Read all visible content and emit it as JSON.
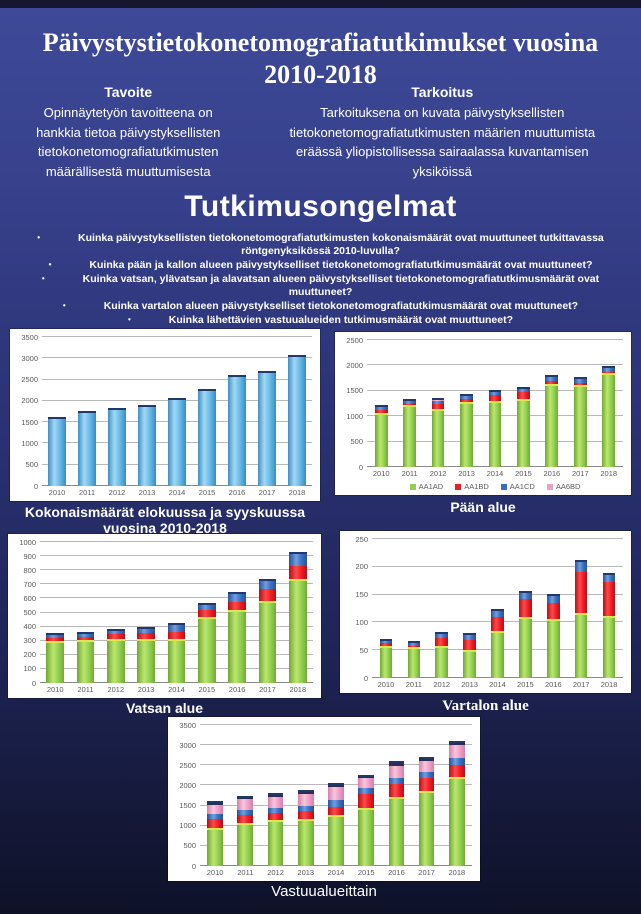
{
  "poster": {
    "title": "Päivystystietokonetomografiatutkimukset vuosina 2010-2018",
    "tavoite": {
      "heading": "Tavoite",
      "body": "Opinnäytetyön tavoitteena on hankkia tietoa päivystyksellisten tietokonetomografiatutkimusten määrällisestä muuttumisesta"
    },
    "tarkoitus": {
      "heading": "Tarkoitus",
      "body": "Tarkoituksena on kuvata päivystyksellisten tietokonetomografiatutkimusten määrien muuttumista eräässä yliopistollisessa sairaalassa kuvantamisen yksiköissä"
    },
    "tutkimusongelmat": {
      "heading": "Tutkimusongelmat",
      "items": [
        "Kuinka päivystyksellisten tietokonetomografiatutkimusten kokonaismäärät ovat muuttuneet tutkittavassa röntgenyksikössä 2010-luvulla?",
        "Kuinka pään ja kallon alueen päivystykselliset tietokonetomografiatutkimusmäärät ovat muuttuneet?",
        "Kuinka vatsan, ylävatsan ja alavatsan alueen päivystykselliset tietokonetomografiatutkimusmäärät ovat muuttuneet?",
        "Kuinka vartalon alueen päivystykselliset tietokonetomografiatutkimusmäärät ovat muuttuneet?",
        "Kuinka lähettävien vastuualueiden tutkimusmäärät ovat muuttuneet?"
      ]
    }
  },
  "colors": {
    "skyblue": "#5FB3E4",
    "green": "#92D050",
    "red": "#EE1C25",
    "blue": "#3A6FC0",
    "pink": "#EE9EC7",
    "dark": "#2B2E52",
    "background_top": "#3E4A99",
    "background_bottom": "#0E1128"
  },
  "chart_data": [
    {
      "id": "kokonaismaarat",
      "type": "bar",
      "title": "Kokonaismäärät elokuussa ja syyskuussa vuosina 2010-2018",
      "categories": [
        "2010",
        "2011",
        "2012",
        "2013",
        "2014",
        "2015",
        "2016",
        "2017",
        "2018"
      ],
      "values": [
        1580,
        1720,
        1780,
        1860,
        2010,
        2240,
        2550,
        2660,
        3040
      ],
      "bar_color": "skyblue",
      "ylim": [
        0,
        3500
      ],
      "yticks": [
        0,
        500,
        1000,
        1500,
        2000,
        2500,
        3000,
        3500
      ],
      "grid": true,
      "legend_position": "none"
    },
    {
      "id": "paan-alue",
      "type": "stacked-bar",
      "title": "Pään alue",
      "categories": [
        "2010",
        "2011",
        "2012",
        "2013",
        "2014",
        "2015",
        "2016",
        "2017",
        "2018"
      ],
      "series": [
        {
          "name": "AA1AD",
          "color": "green",
          "values": [
            1065,
            1220,
            1145,
            1285,
            1305,
            1345,
            1625,
            1605,
            1845
          ]
        },
        {
          "name": "AA1BD",
          "color": "red",
          "values": [
            55,
            30,
            100,
            55,
            110,
            125,
            60,
            50,
            30
          ]
        },
        {
          "name": "AA1CD",
          "color": "blue",
          "values": [
            60,
            50,
            60,
            60,
            65,
            70,
            80,
            70,
            75
          ]
        },
        {
          "name": "AA6BD",
          "color": "pink",
          "values": [
            5,
            5,
            5,
            5,
            5,
            5,
            5,
            5,
            5
          ]
        }
      ],
      "ylim": [
        0,
        2500
      ],
      "yticks": [
        0,
        500,
        1000,
        1500,
        2000,
        2500
      ],
      "grid": true,
      "legend_position": "bottom"
    },
    {
      "id": "vatsan-alue",
      "type": "stacked-bar",
      "title": "Vatsan alue",
      "categories": [
        "2010",
        "2011",
        "2012",
        "2013",
        "2014",
        "2015",
        "2016",
        "2017",
        "2018"
      ],
      "series": [
        {
          "name": "green",
          "color": "green",
          "values": [
            300,
            305,
            310,
            315,
            310,
            465,
            515,
            585,
            735
          ]
        },
        {
          "name": "red",
          "color": "red",
          "values": [
            22,
            22,
            35,
            42,
            50,
            52,
            58,
            82,
            92
          ]
        },
        {
          "name": "blue",
          "color": "blue",
          "values": [
            16,
            20,
            25,
            25,
            55,
            36,
            55,
            55,
            90
          ]
        }
      ],
      "ylim": [
        0,
        1000
      ],
      "yticks": [
        0,
        100,
        200,
        300,
        400,
        500,
        600,
        700,
        800,
        900,
        1000
      ],
      "grid": true,
      "legend_position": "none"
    },
    {
      "id": "vartalon-alue",
      "type": "stacked-bar",
      "title": "Vartalon alue",
      "categories": [
        "2010",
        "2011",
        "2012",
        "2013",
        "2014",
        "2015",
        "2016",
        "2017",
        "2018"
      ],
      "series": [
        {
          "name": "green",
          "color": "green",
          "values": [
            58,
            55,
            58,
            51,
            84,
            110,
            106,
            117,
            112
          ]
        },
        {
          "name": "red",
          "color": "red",
          "values": [
            5,
            3,
            14,
            18,
            26,
            33,
            29,
            74,
            60
          ]
        },
        {
          "name": "blue",
          "color": "blue",
          "values": [
            3,
            5,
            8,
            9,
            10,
            10,
            13,
            18,
            14
          ]
        }
      ],
      "ylim": [
        0,
        250
      ],
      "yticks": [
        0,
        50,
        100,
        150,
        200,
        250
      ],
      "grid": true,
      "legend_position": "none"
    },
    {
      "id": "vastuualueittain",
      "type": "stacked-bar",
      "title": "Vastuualueittain",
      "categories": [
        "2010",
        "2011",
        "2012",
        "2013",
        "2014",
        "2015",
        "2016",
        "2017",
        "2018"
      ],
      "series": [
        {
          "name": "green",
          "color": "green",
          "values": [
            950,
            1060,
            1130,
            1160,
            1260,
            1450,
            1710,
            1860,
            2210
          ]
        },
        {
          "name": "red",
          "color": "red",
          "values": [
            205,
            195,
            175,
            195,
            215,
            330,
            315,
            330,
            305
          ]
        },
        {
          "name": "blue",
          "color": "blue",
          "values": [
            125,
            135,
            145,
            140,
            155,
            150,
            160,
            140,
            160
          ]
        },
        {
          "name": "pink",
          "color": "pink",
          "values": [
            245,
            275,
            265,
            300,
            320,
            250,
            310,
            270,
            330
          ]
        },
        {
          "name": "dark",
          "color": "dark",
          "values": [
            35,
            35,
            45,
            45,
            50,
            40,
            55,
            50,
            45
          ]
        }
      ],
      "ylim": [
        0,
        3500
      ],
      "yticks": [
        0,
        500,
        1000,
        1500,
        2000,
        2500,
        3000,
        3500
      ],
      "grid": true,
      "legend_position": "none"
    }
  ]
}
